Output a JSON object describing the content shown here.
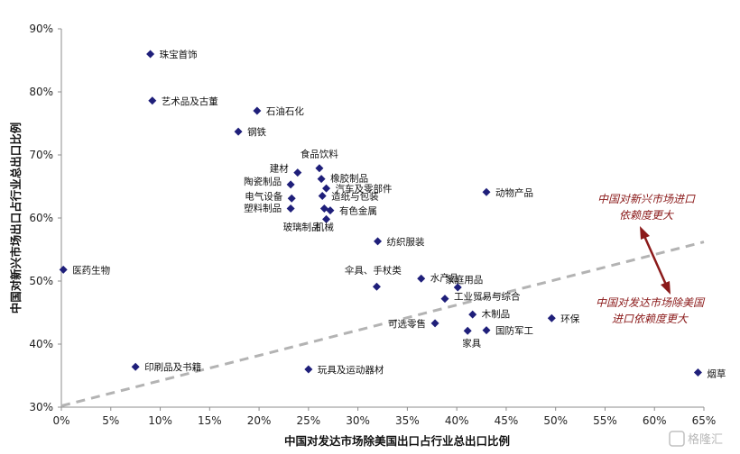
{
  "chart_data": {
    "type": "scatter",
    "xlabel": "中国对发达市场除美国出口占行业总出口比例",
    "ylabel": "中国对新兴市场出口占行业总出口比例",
    "xlim": [
      0,
      0.65
    ],
    "ylim": [
      0.3,
      0.9
    ],
    "x_ticks": [
      "0%",
      "5%",
      "10%",
      "15%",
      "20%",
      "25%",
      "30%",
      "35%",
      "40%",
      "45%",
      "50%",
      "55%",
      "60%",
      "65%"
    ],
    "y_ticks": [
      "30%",
      "40%",
      "50%",
      "60%",
      "70%",
      "80%",
      "90%"
    ],
    "grid": false,
    "marker_color": "#1f1f7a",
    "trend_line_color": "#b3b3b3",
    "annotation_color": "#8b1a1a",
    "trend_line": {
      "x": [
        0,
        0.65
      ],
      "y": [
        0.302,
        0.562
      ]
    },
    "points": [
      {
        "label": "珠宝首饰",
        "x": 0.09,
        "y": 0.86
      },
      {
        "label": "艺术品及古董",
        "x": 0.092,
        "y": 0.786
      },
      {
        "label": "石油石化",
        "x": 0.198,
        "y": 0.77
      },
      {
        "label": "钢铁",
        "x": 0.179,
        "y": 0.737
      },
      {
        "label": "食品饮料",
        "x": 0.261,
        "y": 0.679
      },
      {
        "label": "建材",
        "x": 0.239,
        "y": 0.672
      },
      {
        "label": "橡胶制品",
        "x": 0.263,
        "y": 0.662
      },
      {
        "label": "陶瓷制品",
        "x": 0.232,
        "y": 0.653
      },
      {
        "label": "汽车及零部件",
        "x": 0.268,
        "y": 0.647
      },
      {
        "label": "电气设备",
        "x": 0.233,
        "y": 0.631
      },
      {
        "label": "造纸与包装",
        "x": 0.264,
        "y": 0.635
      },
      {
        "label": "塑料制品",
        "x": 0.232,
        "y": 0.615
      },
      {
        "label": "有色金属",
        "x": 0.272,
        "y": 0.612
      },
      {
        "label": "玻璃制品",
        "x": 0.268,
        "y": 0.598
      },
      {
        "label": "机械",
        "x": 0.266,
        "y": 0.615
      },
      {
        "label": "动物产品",
        "x": 0.43,
        "y": 0.641
      },
      {
        "label": "纺织服装",
        "x": 0.32,
        "y": 0.563
      },
      {
        "label": "医药生物",
        "x": 0.002,
        "y": 0.518
      },
      {
        "label": "伞具、手杖类",
        "x": 0.319,
        "y": 0.491
      },
      {
        "label": "水产品",
        "x": 0.364,
        "y": 0.504
      },
      {
        "label": "家庭用品",
        "x": 0.401,
        "y": 0.49
      },
      {
        "label": "工业贸易与综合",
        "x": 0.388,
        "y": 0.472
      },
      {
        "label": "木制品",
        "x": 0.416,
        "y": 0.447
      },
      {
        "label": "环保",
        "x": 0.496,
        "y": 0.441
      },
      {
        "label": "可选零售",
        "x": 0.378,
        "y": 0.433
      },
      {
        "label": "国防军工",
        "x": 0.43,
        "y": 0.422
      },
      {
        "label": "家具",
        "x": 0.411,
        "y": 0.421
      },
      {
        "label": "印刷品及书籍",
        "x": 0.075,
        "y": 0.364
      },
      {
        "label": "玩具及运动器材",
        "x": 0.25,
        "y": 0.36
      },
      {
        "label": "烟草",
        "x": 0.644,
        "y": 0.355
      }
    ],
    "annotations": [
      {
        "lines": [
          "中国对新兴市场进口",
          "依赖度更大"
        ]
      },
      {
        "lines": [
          "中国对发达市场除美国",
          "进口依赖度更大"
        ]
      }
    ]
  },
  "watermark": "格隆汇"
}
